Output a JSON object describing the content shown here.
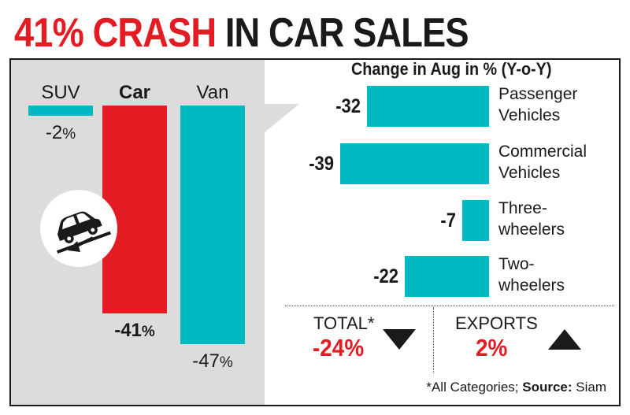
{
  "title": {
    "highlight": "41% CRASH",
    "rest": "IN CAR SALES"
  },
  "colors": {
    "red": "#e31b23",
    "teal": "#00b8bf",
    "panel": "#dcdcdc",
    "ink": "#1a1a1a"
  },
  "icon": "car-tilted-down-arrow-icon",
  "chart_data": [
    {
      "type": "bar",
      "orientation": "vertical",
      "categories": [
        "SUV",
        "Car",
        "Van"
      ],
      "values": [
        -2,
        -41,
        -47
      ],
      "value_labels": [
        {
          "num": "-2",
          "unit": "%"
        },
        {
          "num": "-41",
          "unit": "%"
        },
        {
          "num": "-47",
          "unit": "%"
        }
      ],
      "bar_colors": [
        "#00b8bf",
        "#e31b23",
        "#00b8bf"
      ]
    },
    {
      "type": "bar",
      "orientation": "horizontal",
      "title": "Change in Aug in % (Y-o-Y)",
      "categories": [
        "Passenger\nVehicles",
        "Commercial\nVehicles",
        "Three-\nwheelers",
        "Two-\nwheelers"
      ],
      "values": [
        -32,
        -39,
        -7,
        -22
      ],
      "value_labels": [
        "-32",
        "-39",
        "-7",
        "-22"
      ],
      "bar_color": "#00b8bf"
    }
  ],
  "summary": {
    "total_label": "TOTAL*",
    "total_value": "-24%",
    "total_direction": "down",
    "exports_label": "EXPORTS",
    "exports_value": "2%",
    "exports_direction": "up"
  },
  "footnote": {
    "prefix": "*All Categories; ",
    "source_label": "Source:",
    "source": " Siam"
  }
}
